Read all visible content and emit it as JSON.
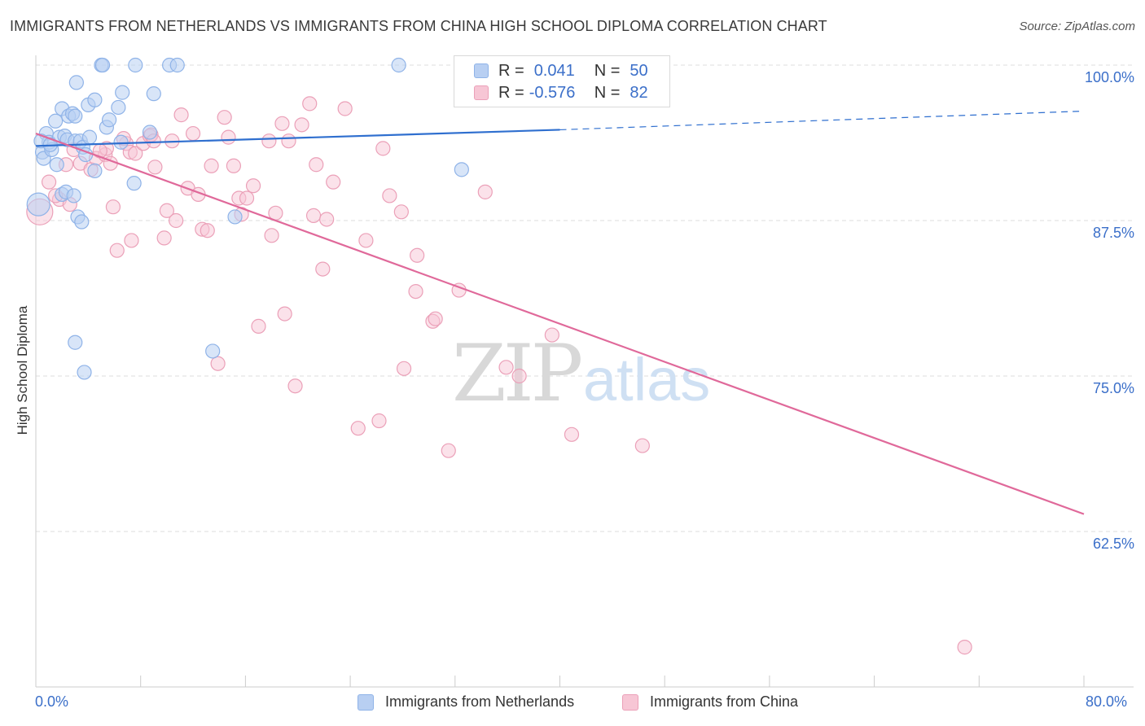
{
  "chart_data": {
    "type": "scatter",
    "title": "IMMIGRANTS FROM NETHERLANDS VS IMMIGRANTS FROM CHINA HIGH SCHOOL DIPLOMA CORRELATION CHART",
    "source": "Source: ZipAtlas.com",
    "xlabel": "",
    "ylabel": "High School Diploma",
    "xlim": [
      0,
      80
    ],
    "ylim": [
      52,
      101
    ],
    "x_tick_labels": [
      "0.0%",
      "80.0%"
    ],
    "y_ticks": [
      62.5,
      75.0,
      87.5,
      100.0
    ],
    "y_tick_labels": [
      "62.5%",
      "75.0%",
      "87.5%",
      "100.0%"
    ],
    "grid": "horizontal dashed",
    "watermark": "ZIPatlas",
    "legend": [
      {
        "name": "Immigrants from Netherlands",
        "r_label": "R =",
        "r": "0.041",
        "n_label": "N =",
        "n": "50",
        "color": "#8fb3e8",
        "fill": "#b8cff2"
      },
      {
        "name": "Immigrants from China",
        "r_label": "R =",
        "r": "-0.576",
        "n_label": "N =",
        "n": "82",
        "color": "#eba0b8",
        "fill": "#f7c6d5"
      }
    ],
    "series": [
      {
        "name": "Immigrants from Netherlands",
        "color": "#8fb3e8",
        "trend": {
          "x": [
            0,
            40
          ],
          "y": [
            93.5,
            94.8
          ],
          "dashed_to": [
            80,
            96.3
          ],
          "color": "#2f6fcf"
        },
        "points": [
          [
            0.5,
            93.0
          ],
          [
            0.6,
            92.5
          ],
          [
            0.8,
            94.5
          ],
          [
            1.0,
            93.8
          ],
          [
            1.2,
            93.2
          ],
          [
            1.5,
            95.5
          ],
          [
            1.6,
            92.0
          ],
          [
            1.8,
            94.2
          ],
          [
            2.0,
            96.5
          ],
          [
            2.2,
            94.3
          ],
          [
            2.4,
            94.0
          ],
          [
            2.5,
            95.9
          ],
          [
            2.8,
            96.1
          ],
          [
            3.0,
            95.9
          ],
          [
            2.0,
            89.6
          ],
          [
            2.3,
            89.8
          ],
          [
            2.9,
            89.5
          ],
          [
            3.2,
            87.8
          ],
          [
            3.0,
            93.9
          ],
          [
            3.4,
            93.9
          ],
          [
            3.1,
            98.6
          ],
          [
            3.5,
            87.4
          ],
          [
            3.6,
            93.4
          ],
          [
            3.8,
            92.8
          ],
          [
            4.1,
            94.2
          ],
          [
            4.0,
            96.8
          ],
          [
            4.5,
            97.2
          ],
          [
            4.5,
            91.5
          ],
          [
            5.0,
            100.0
          ],
          [
            5.1,
            100.0
          ],
          [
            5.4,
            95.0
          ],
          [
            5.6,
            95.6
          ],
          [
            6.3,
            96.6
          ],
          [
            6.5,
            93.8
          ],
          [
            6.6,
            97.8
          ],
          [
            7.5,
            90.5
          ],
          [
            7.6,
            100.0
          ],
          [
            8.7,
            94.6
          ],
          [
            9.0,
            97.7
          ],
          [
            10.2,
            100.0
          ],
          [
            10.8,
            100.0
          ],
          [
            13.5,
            77.0
          ],
          [
            15.2,
            87.8
          ],
          [
            3.7,
            75.3
          ],
          [
            3.0,
            77.7
          ],
          [
            27.7,
            100.0
          ],
          [
            32.5,
            91.6
          ],
          [
            0.2,
            88.8
          ],
          [
            0.4,
            93.9
          ],
          [
            1.1,
            93.6
          ]
        ]
      },
      {
        "name": "Immigrants from China",
        "color": "#eba0b8",
        "trend": {
          "x": [
            0,
            80
          ],
          "y": [
            94.5,
            63.9
          ],
          "color": "#e0699a"
        },
        "points": [
          [
            0.3,
            88.2
          ],
          [
            1.0,
            90.6
          ],
          [
            1.8,
            89.2
          ],
          [
            2.3,
            92.0
          ],
          [
            2.9,
            93.2
          ],
          [
            3.4,
            92.1
          ],
          [
            4.2,
            91.6
          ],
          [
            4.6,
            92.5
          ],
          [
            5.3,
            92.8
          ],
          [
            5.4,
            93.3
          ],
          [
            5.7,
            92.1
          ],
          [
            5.9,
            88.6
          ],
          [
            6.2,
            85.1
          ],
          [
            6.9,
            93.7
          ],
          [
            7.2,
            93.0
          ],
          [
            7.3,
            85.9
          ],
          [
            7.6,
            92.9
          ],
          [
            8.2,
            93.7
          ],
          [
            8.7,
            94.3
          ],
          [
            8.8,
            94.4
          ],
          [
            9.0,
            93.9
          ],
          [
            9.1,
            91.8
          ],
          [
            9.8,
            86.1
          ],
          [
            10.0,
            88.3
          ],
          [
            10.4,
            93.9
          ],
          [
            10.7,
            87.5
          ],
          [
            11.1,
            96.0
          ],
          [
            11.6,
            90.1
          ],
          [
            12.0,
            94.5
          ],
          [
            12.4,
            89.6
          ],
          [
            12.7,
            86.8
          ],
          [
            13.1,
            86.7
          ],
          [
            13.4,
            91.9
          ],
          [
            13.9,
            76.0
          ],
          [
            14.4,
            95.8
          ],
          [
            14.7,
            94.2
          ],
          [
            15.1,
            91.9
          ],
          [
            15.5,
            89.3
          ],
          [
            15.7,
            88.0
          ],
          [
            16.1,
            89.3
          ],
          [
            16.6,
            90.3
          ],
          [
            17.0,
            79.0
          ],
          [
            17.8,
            93.9
          ],
          [
            18.0,
            86.3
          ],
          [
            18.3,
            88.1
          ],
          [
            18.8,
            95.3
          ],
          [
            19.0,
            80.0
          ],
          [
            19.3,
            93.9
          ],
          [
            19.8,
            74.2
          ],
          [
            20.3,
            95.2
          ],
          [
            20.9,
            96.9
          ],
          [
            21.2,
            87.9
          ],
          [
            21.4,
            92.0
          ],
          [
            21.9,
            83.6
          ],
          [
            22.2,
            87.6
          ],
          [
            22.7,
            90.6
          ],
          [
            23.6,
            96.5
          ],
          [
            24.6,
            70.8
          ],
          [
            25.2,
            85.9
          ],
          [
            26.2,
            71.4
          ],
          [
            26.5,
            93.3
          ],
          [
            27.0,
            89.5
          ],
          [
            27.9,
            88.2
          ],
          [
            28.1,
            75.6
          ],
          [
            29.0,
            81.8
          ],
          [
            29.1,
            84.7
          ],
          [
            30.3,
            79.4
          ],
          [
            30.5,
            79.6
          ],
          [
            31.5,
            69.0
          ],
          [
            32.3,
            81.9
          ],
          [
            32.9,
            100.0
          ],
          [
            34.3,
            89.8
          ],
          [
            35.9,
            75.7
          ],
          [
            36.9,
            75.0
          ],
          [
            39.4,
            78.3
          ],
          [
            40.9,
            70.3
          ],
          [
            46.3,
            69.4
          ],
          [
            70.9,
            53.2
          ],
          [
            1.5,
            89.5
          ],
          [
            2.6,
            88.8
          ],
          [
            6.7,
            94.1
          ],
          [
            4.9,
            93.1
          ]
        ]
      }
    ]
  }
}
